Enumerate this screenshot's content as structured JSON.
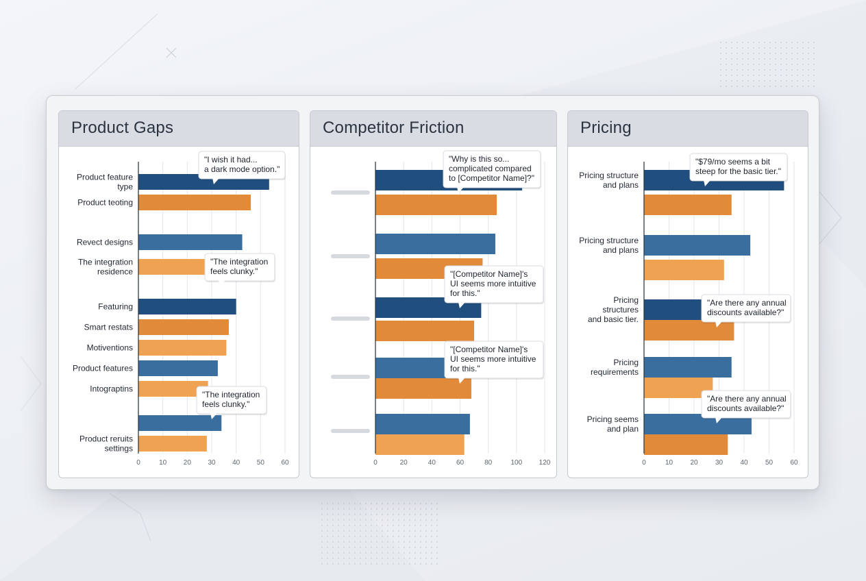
{
  "colors": {
    "dark_blue": "#1f4e7f",
    "steel_blue": "#3a6e9f",
    "orange_dark": "#e08a3a",
    "orange_light": "#eea252",
    "placeholder": "#d6dade"
  },
  "chart_data": [
    {
      "type": "bar",
      "orientation": "horizontal",
      "title": "Product Gaps",
      "xlim": [
        0,
        60
      ],
      "x_ticks": [
        0,
        10,
        20,
        30,
        40,
        50,
        60
      ],
      "grid": true,
      "bars": [
        {
          "label": "Product feature\ntype",
          "value": 53.5,
          "color": "dark_blue"
        },
        {
          "label": "Product teoting",
          "value": 46,
          "color": "orange_dark"
        },
        {
          "label": "Revect designs",
          "value": 42.5,
          "color": "steel_blue"
        },
        {
          "label": "The integration\nresidence",
          "value": 30,
          "color": "orange_light"
        },
        {
          "label": "Featuring",
          "value": 40,
          "color": "dark_blue"
        },
        {
          "label": "Smart restats",
          "value": 37,
          "color": "orange_dark"
        },
        {
          "label": "Motiventions",
          "value": 36,
          "color": "orange_light"
        },
        {
          "label": "Product features",
          "value": 32.5,
          "color": "steel_blue"
        },
        {
          "label": "Intograptins",
          "value": 28.5,
          "color": "orange_light"
        },
        {
          "label": "",
          "value": 34,
          "color": "steel_blue"
        },
        {
          "label": "Product reruits\nsettings",
          "value": 28,
          "color": "orange_light"
        }
      ],
      "callouts": [
        {
          "text": "\"I wish it had...\na dark mode option.\"",
          "bar_index": 0
        },
        {
          "text": "\"The integration\nfeels clunky.\"",
          "bar_index": 3
        },
        {
          "text": "\"The integration\nfeels clunky.\"",
          "bar_index": 9
        }
      ]
    },
    {
      "type": "bar",
      "orientation": "horizontal",
      "title": "Competitor Friction",
      "xlim": [
        0,
        120
      ],
      "x_ticks": [
        0,
        20,
        40,
        60,
        80,
        100,
        120
      ],
      "grid": true,
      "bars": [
        {
          "label": "",
          "value": 104,
          "color": "dark_blue"
        },
        {
          "label": "",
          "value": 86,
          "color": "orange_dark"
        },
        {
          "label": "",
          "value": 85,
          "color": "steel_blue"
        },
        {
          "label": "",
          "value": 76,
          "color": "orange_dark"
        },
        {
          "label": "",
          "value": 75,
          "color": "dark_blue"
        },
        {
          "label": "",
          "value": 70,
          "color": "orange_dark"
        },
        {
          "label": "",
          "value": 65,
          "color": "steel_blue"
        },
        {
          "label": "",
          "value": 68,
          "color": "orange_dark"
        },
        {
          "label": "",
          "value": 67,
          "color": "steel_blue"
        },
        {
          "label": "",
          "value": 63,
          "color": "orange_light"
        }
      ],
      "callouts": [
        {
          "text": "\"Why is this so...\ncomplicated compared\nto [Competitor Name]?\"",
          "bar_index": 0
        },
        {
          "text": "\"[Competitor Name]'s\nUI seems more intuitive\nfor this.\"",
          "bar_index": 3
        },
        {
          "text": "\"[Competitor Name]'s\nUI seems more intuitive\nfor this.\"",
          "bar_index": 6
        }
      ]
    },
    {
      "type": "bar",
      "orientation": "horizontal",
      "title": "Pricing",
      "xlim": [
        0,
        60
      ],
      "x_ticks": [
        0,
        10,
        20,
        30,
        40,
        50,
        60
      ],
      "grid": true,
      "bars": [
        {
          "label": "Pricing structure\nand plans",
          "value": 56,
          "color": "dark_blue"
        },
        {
          "label": "",
          "value": 35,
          "color": "orange_dark"
        },
        {
          "label": "Pricing structure\nand plans",
          "value": 42.5,
          "color": "steel_blue"
        },
        {
          "label": "",
          "value": 32,
          "color": "orange_light"
        },
        {
          "label": "Pricing\nstructures\nand basic tier.",
          "value": 30,
          "color": "dark_blue"
        },
        {
          "label": "",
          "value": 36,
          "color": "orange_dark"
        },
        {
          "label": "Pricing\nrequirements",
          "value": 35,
          "color": "steel_blue"
        },
        {
          "label": "",
          "value": 27.5,
          "color": "orange_light"
        },
        {
          "label": "Pricing seems\nand plan",
          "value": 43,
          "color": "steel_blue"
        },
        {
          "label": "",
          "value": 33.5,
          "color": "orange_dark"
        }
      ],
      "callouts": [
        {
          "text": "\"$79/mo seems a bit\nsteep for the basic tier.\"",
          "bar_index": 0
        },
        {
          "text": "\"Are there any annual\ndiscounts available?\"",
          "bar_index": 4
        },
        {
          "text": "\"Are there any annual\ndiscounts available?\"",
          "bar_index": 8
        }
      ]
    }
  ]
}
